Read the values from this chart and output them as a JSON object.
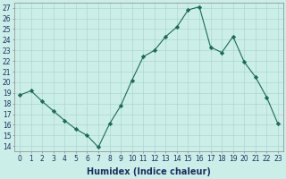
{
  "x": [
    0,
    1,
    2,
    3,
    4,
    5,
    6,
    7,
    8,
    9,
    10,
    11,
    12,
    13,
    14,
    15,
    16,
    17,
    18,
    19,
    20,
    21,
    22,
    23
  ],
  "y": [
    18.8,
    19.2,
    18.2,
    17.3,
    16.4,
    15.6,
    15.0,
    13.9,
    16.1,
    17.8,
    20.2,
    22.4,
    23.0,
    24.3,
    25.2,
    26.8,
    27.1,
    23.3,
    22.8,
    24.3,
    21.9,
    20.5,
    18.6,
    16.1
  ],
  "line_color": "#1a6b5a",
  "marker": "D",
  "marker_size": 2.2,
  "bg_color": "#cceee8",
  "grid_color": "#aad8d0",
  "xlabel": "Humidex (Indice chaleur)",
  "xlim": [
    -0.5,
    23.5
  ],
  "ylim": [
    13.5,
    27.5
  ],
  "yticks": [
    14,
    15,
    16,
    17,
    18,
    19,
    20,
    21,
    22,
    23,
    24,
    25,
    26,
    27
  ],
  "xticks": [
    0,
    1,
    2,
    3,
    4,
    5,
    6,
    7,
    8,
    9,
    10,
    11,
    12,
    13,
    14,
    15,
    16,
    17,
    18,
    19,
    20,
    21,
    22,
    23
  ],
  "tick_fontsize": 5.5,
  "xlabel_fontsize": 7,
  "tick_color": "#1a3060",
  "label_color": "#1a3060"
}
